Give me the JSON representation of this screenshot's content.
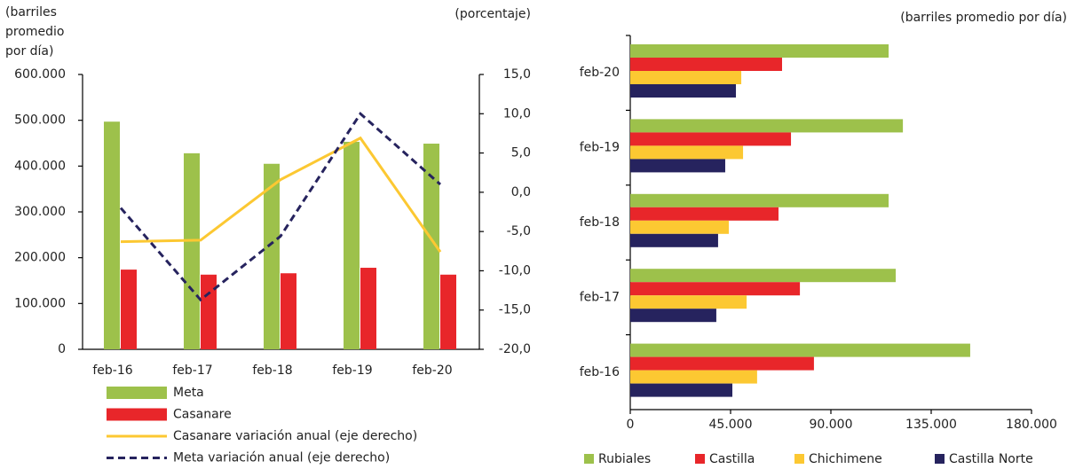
{
  "chart_data": [
    {
      "type": "bar",
      "y_label": [
        "(barriles",
        "promedio",
        "por día)"
      ],
      "y2_label": "(porcentaje)",
      "categories": [
        "feb-16",
        "feb-17",
        "feb-18",
        "feb-19",
        "feb-20"
      ],
      "series": [
        {
          "name": "Meta",
          "color": "#9dc14b",
          "values": [
            497000,
            428000,
            405000,
            453000,
            449000
          ]
        },
        {
          "name": "Casanare",
          "color": "#e8262a",
          "values": [
            174000,
            163000,
            166000,
            178000,
            163000
          ]
        },
        {
          "name": "Casanare variación anual (eje derecho)",
          "type": "line",
          "axis": "y2",
          "color": "#fcc832",
          "values": [
            -6.3,
            -6.1,
            1.6,
            6.9,
            -7.6
          ]
        },
        {
          "name": "Meta variación anual (eje derecho)",
          "type": "line",
          "axis": "y2",
          "dashed": true,
          "color": "#26235e",
          "values": [
            -2.0,
            -13.7,
            -5.6,
            10.0,
            1.0
          ]
        }
      ],
      "ylim": [
        0,
        600000
      ],
      "yticks": [
        0,
        {
          "value": 100000,
          "label": "100.000"
        },
        {
          "value": 200000,
          "label": "200.000"
        },
        {
          "value": 300000,
          "label": "300.000"
        },
        {
          "value": 400000,
          "label": "400.000"
        },
        {
          "value": 500000,
          "label": "500.000"
        },
        {
          "value": 600000,
          "label": "600.000"
        }
      ],
      "y2lim": [
        -20,
        15
      ],
      "y2ticks": [
        {
          "value": -20,
          "label": "-20,0"
        },
        {
          "value": -15,
          "label": "-15,0"
        },
        {
          "value": -10,
          "label": "-10,0"
        },
        {
          "value": -5,
          "label": "-5,0"
        },
        {
          "value": 0,
          "label": "0,0"
        },
        {
          "value": 5,
          "label": "5,0"
        },
        {
          "value": 10,
          "label": "10,0"
        },
        {
          "value": 15,
          "label": "15,0"
        }
      ]
    },
    {
      "type": "bar",
      "orientation": "horizontal",
      "x_label": "(barriles promedio por día)",
      "categories": [
        "feb-16",
        "feb-17",
        "feb-18",
        "feb-19",
        "feb-20"
      ],
      "series": [
        {
          "name": "Rubiales",
          "color": "#9dc14b",
          "values": [
            152500,
            119100,
            115900,
            122300,
            115900
          ]
        },
        {
          "name": "Castilla",
          "color": "#e8262a",
          "values": [
            82400,
            76100,
            66500,
            72100,
            68100
          ]
        },
        {
          "name": "Chichimene",
          "color": "#fcc832",
          "values": [
            56900,
            52200,
            44200,
            50600,
            49800
          ]
        },
        {
          "name": "Castilla Norte",
          "color": "#26235e",
          "values": [
            45800,
            38600,
            39400,
            42600,
            47400
          ]
        }
      ],
      "xlim": [
        0,
        180000
      ],
      "xticks": [
        0,
        {
          "value": 45000,
          "label": "45.000"
        },
        {
          "value": 90000,
          "label": "90.000"
        },
        {
          "value": 135000,
          "label": "135.000"
        },
        {
          "value": 180000,
          "label": "180.000"
        }
      ]
    }
  ]
}
